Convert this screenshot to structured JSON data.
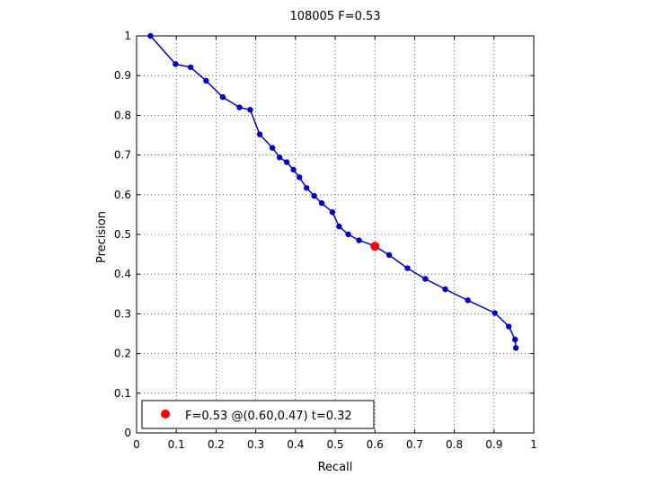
{
  "chart_data": {
    "type": "line",
    "title": "108005 F=0.53",
    "xlabel": "Recall",
    "ylabel": "Precision",
    "xlim": [
      0,
      1
    ],
    "ylim": [
      0,
      1
    ],
    "xticks": [
      "0",
      "0.1",
      "0.2",
      "0.3",
      "0.4",
      "0.5",
      "0.6",
      "0.7",
      "0.8",
      "0.9",
      "1"
    ],
    "yticks": [
      "0",
      "0.1",
      "0.2",
      "0.3",
      "0.4",
      "0.5",
      "0.6",
      "0.7",
      "0.8",
      "0.9",
      "1"
    ],
    "grid": true,
    "legend_position": "bottom-left",
    "series": [
      {
        "color": "#0000cc",
        "points": [
          [
            0.035,
            1.0
          ],
          [
            0.098,
            0.929
          ],
          [
            0.136,
            0.921
          ],
          [
            0.175,
            0.887
          ],
          [
            0.217,
            0.846
          ],
          [
            0.259,
            0.82
          ],
          [
            0.286,
            0.814
          ],
          [
            0.31,
            0.752
          ],
          [
            0.342,
            0.718
          ],
          [
            0.36,
            0.694
          ],
          [
            0.378,
            0.682
          ],
          [
            0.395,
            0.663
          ],
          [
            0.41,
            0.644
          ],
          [
            0.428,
            0.617
          ],
          [
            0.447,
            0.597
          ],
          [
            0.466,
            0.579
          ],
          [
            0.493,
            0.556
          ],
          [
            0.51,
            0.52
          ],
          [
            0.533,
            0.5
          ],
          [
            0.56,
            0.485
          ],
          [
            0.597,
            0.472
          ],
          [
            0.636,
            0.448
          ],
          [
            0.682,
            0.415
          ],
          [
            0.727,
            0.388
          ],
          [
            0.777,
            0.362
          ],
          [
            0.834,
            0.334
          ],
          [
            0.902,
            0.302
          ],
          [
            0.937,
            0.268
          ],
          [
            0.953,
            0.235
          ],
          [
            0.955,
            0.214
          ]
        ]
      }
    ],
    "highlight": {
      "recall": 0.6,
      "precision": 0.47,
      "color": "#ff0000",
      "legend_label": "F=0.53 @(0.60,0.47) t=0.32"
    }
  }
}
